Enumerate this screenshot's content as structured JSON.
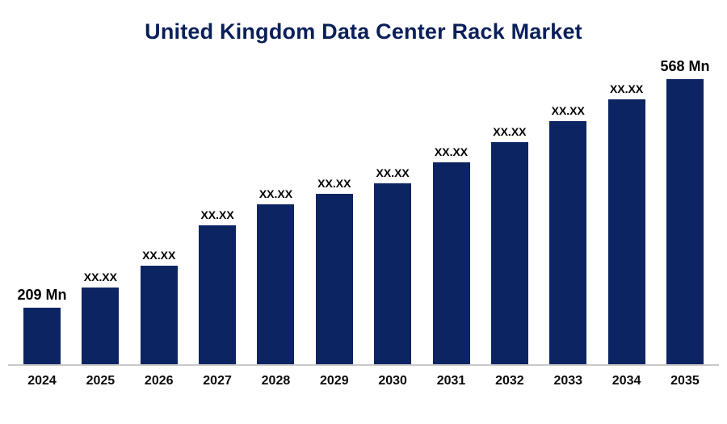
{
  "title": "United Kingdom Data Center Rack Market",
  "colors": {
    "bar": "#0d2462",
    "title": "#0a1f5a",
    "value_label": "#000000",
    "baseline": "#c9c9c9"
  },
  "chart_data": {
    "type": "bar",
    "title": "United Kingdom Data Center Rack Market",
    "categories": [
      "2024",
      "2025",
      "2026",
      "2027",
      "2028",
      "2029",
      "2030",
      "2031",
      "2032",
      "2033",
      "2034",
      "2035"
    ],
    "values": [
      209,
      240,
      275,
      339,
      371,
      388,
      405,
      437,
      469,
      502,
      536,
      568
    ],
    "bar_labels": [
      "209 Mn",
      "XX.XX",
      "XX.XX",
      "XX.XX",
      "XX.XX",
      "XX.XX",
      "XX.XX",
      "XX.XX",
      "XX.XX",
      "XX.XX",
      "XX.XX",
      "568 Mn"
    ],
    "xlabel": "",
    "ylabel": "",
    "ylim": [
      120,
      600
    ],
    "grid": false,
    "legend": false,
    "unit": "Mn"
  }
}
